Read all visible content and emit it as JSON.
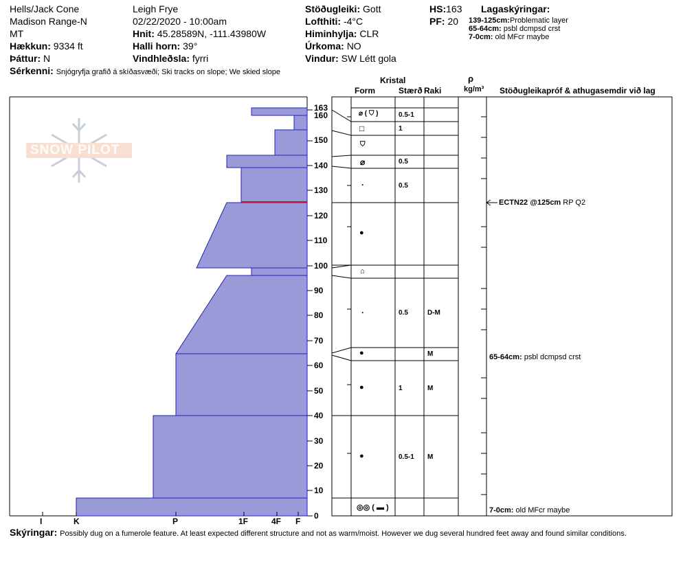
{
  "header": {
    "col1": [
      "Hells/Jack Cone",
      "Madison Range-N",
      "MT"
    ],
    "elevation_label": "Hækkun:",
    "elevation_value": "9334 ft",
    "aspect_label": "Þáttur:",
    "aspect_value": "N",
    "observer": "Leigh Frye",
    "datetime": "02/22/2020 - 10:00am",
    "coords_label": "Hnit:",
    "coords_value": "45.28589N, -111.43980W",
    "slope_label": "Halli horn:",
    "slope_value": "39°",
    "wind_loading_label": "Vindhleðsla:",
    "wind_loading_value": "fyrri",
    "stability_label": "Stöðugleiki:",
    "stability_value": "Gott",
    "airtemp_label": "Lofthiti:",
    "airtemp_value": "-4°C",
    "sky_label": "Himinhylja:",
    "sky_value": "CLR",
    "precip_label": "Úrkoma:",
    "precip_value": "NO",
    "wind_label": "Vindur:",
    "wind_value": "SW  Létt gola",
    "hs_label": "HS:",
    "hs_value": "163",
    "pf_label": "PF:",
    "pf_value": "20",
    "legend_title": "Lagaskýringar:",
    "legend_items": [
      {
        "range": "139-125cm:",
        "text": "Problematic layer"
      },
      {
        "range": "65-64cm:",
        "text": "psbl dcmpsd crst"
      },
      {
        "range": "7-0cm:",
        "text": "old MFcr maybe"
      }
    ],
    "features_label": "Sérkenni:",
    "features_value": "Snjógryfja grafið á skíðasvæði;  Ski tracks on slope;  We skied slope"
  },
  "logo_text": "SNOW PILOT",
  "columns": {
    "kristal": "Kristal",
    "form": "Form",
    "size": "Stærð",
    "moisture": "Raki",
    "rho": "ρ",
    "density_unit": "kg/m³",
    "tests": "Stöðugleikapróf & athugasemdir við lag"
  },
  "hardness_scale": [
    "I",
    "K",
    "P",
    "1F",
    "4F",
    "F"
  ],
  "height_ticks": [
    "163",
    "160",
    "150",
    "140",
    "130",
    "120",
    "110",
    "100",
    "90",
    "80",
    "70",
    "60",
    "50",
    "40",
    "30",
    "20",
    "10",
    "0"
  ],
  "layers": [
    {
      "top": 163,
      "bottom": 160,
      "hardness": "1F-"
    },
    {
      "top": 160,
      "bottom": 154,
      "hardness": "F"
    },
    {
      "top": 154,
      "bottom": 144,
      "hardness": "4F"
    },
    {
      "top": 144,
      "bottom": 139,
      "hardness": "1F"
    },
    {
      "top": 139,
      "bottom": 125,
      "hardness": "1F-"
    },
    {
      "top": 125,
      "bottom": 100,
      "hardness": "1F to P+"
    },
    {
      "top": 100,
      "bottom": 97,
      "hardness": "1F-"
    },
    {
      "top": 97,
      "bottom": 65,
      "hardness": "1F to P"
    },
    {
      "top": 65,
      "bottom": 40,
      "hardness": "P"
    },
    {
      "top": 40,
      "bottom": 7,
      "hardness": "P-"
    },
    {
      "top": 7,
      "bottom": 0,
      "hardness": "K"
    }
  ],
  "crystal_rows": [
    {
      "form": "⌀ ( ⛉ )",
      "size": "0.5-1",
      "moisture": ""
    },
    {
      "form": "□",
      "size": "1",
      "moisture": ""
    },
    {
      "form": "⛉",
      "size": "",
      "moisture": ""
    },
    {
      "form": "⌀",
      "size": "0.5",
      "moisture": ""
    },
    {
      "form": "·",
      "size": "0.5",
      "moisture": ""
    },
    {
      "form": "●",
      "size": "",
      "moisture": ""
    },
    {
      "form": "⌂",
      "size": "",
      "moisture": ""
    },
    {
      "form": "·",
      "size": "0.5",
      "moisture": "D-M"
    },
    {
      "form": "●",
      "size": "",
      "moisture": "M"
    },
    {
      "form": "●",
      "size": "1",
      "moisture": "M"
    },
    {
      "form": "●",
      "size": "0.5-1",
      "moisture": "M"
    },
    {
      "form": "◎◎ ( ▬ )",
      "size": "",
      "moisture": ""
    }
  ],
  "test_result": {
    "bold": "ECTN22 @125cm",
    "text": "RP Q2"
  },
  "layer_comments": [
    {
      "bold": "65-64cm:",
      "text": "psbl dcmpsd crst"
    },
    {
      "bold": "7-0cm:",
      "text": "old MFcr maybe"
    }
  ],
  "footer": {
    "label": "Skýringar:",
    "text": "Possibly dug on a fumerole feature. At least expected different structure and not as warm/moist. However we dug several hundred feet away and found similar conditions."
  },
  "colors": {
    "fill": "#9a9ad8",
    "edge": "#2020c0",
    "problem": "#c0143c"
  }
}
